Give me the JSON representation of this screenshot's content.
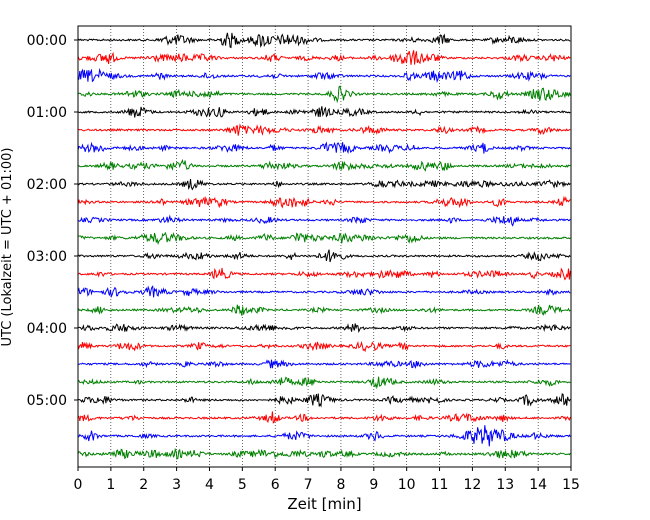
{
  "chart_data": {
    "type": "line",
    "title": "",
    "xlabel": "Zeit  [min]",
    "ylabel": "UTC (Lokalzeit = UTC + 01:00)",
    "xlim": [
      0,
      15
    ],
    "x_ticks": [
      "0",
      "1",
      "2",
      "3",
      "4",
      "5",
      "6",
      "7",
      "8",
      "9",
      "10",
      "11",
      "12",
      "13",
      "14",
      "15"
    ],
    "y_tick_labels": [
      "00:00",
      "01:00",
      "02:00",
      "03:00",
      "04:00",
      "05:00"
    ],
    "traces_per_hour": 4,
    "trace_count": 24,
    "trace_interval_min": 15,
    "trace_colors": [
      "#000000",
      "#ff0000",
      "#0000ff",
      "#008000"
    ],
    "grid": "vertical-dotted"
  }
}
